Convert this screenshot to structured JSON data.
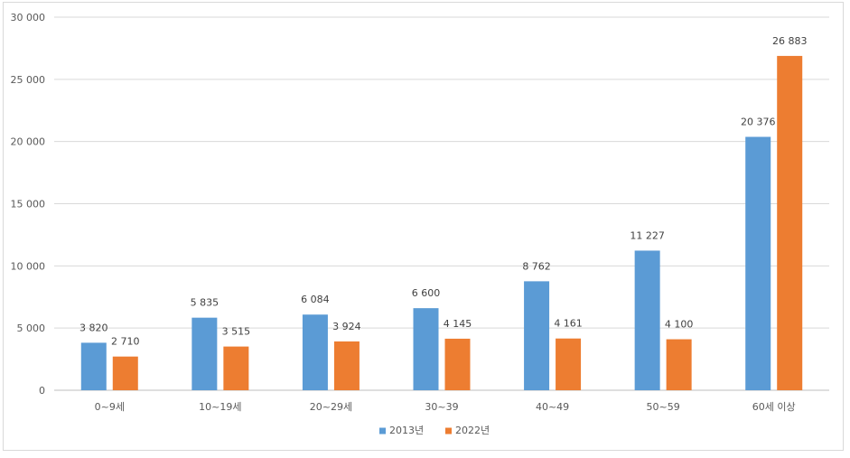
{
  "chart_data": {
    "type": "bar",
    "title": "",
    "xlabel": "",
    "ylabel": "",
    "ylim": [
      0,
      30000
    ],
    "yticks": [
      0,
      5000,
      10000,
      15000,
      20000,
      25000,
      30000
    ],
    "ytick_labels": [
      "0",
      "5 000",
      "10 000",
      "15 000",
      "20 000",
      "25 000",
      "30 000"
    ],
    "grid": true,
    "legend_position": "bottom",
    "categories": [
      "0~9세",
      "10~19세",
      "20~29세",
      "30~39",
      "40~49",
      "50~59",
      "60세 이상"
    ],
    "series": [
      {
        "name": "2013년",
        "color": "#5b9bd5",
        "values": [
          3820,
          5835,
          6084,
          6600,
          8762,
          11227,
          20376
        ],
        "labels": [
          "3 820",
          "5 835",
          "6 084",
          "6 600",
          "8 762",
          "11 227",
          "20 376"
        ]
      },
      {
        "name": "2022년",
        "color": "#ed7d31",
        "values": [
          2710,
          3515,
          3924,
          4145,
          4161,
          4100,
          26883
        ],
        "labels": [
          "2 710",
          "3 515",
          "3 924",
          "4 145",
          "4 161",
          "4 100",
          "26 883"
        ]
      }
    ]
  }
}
